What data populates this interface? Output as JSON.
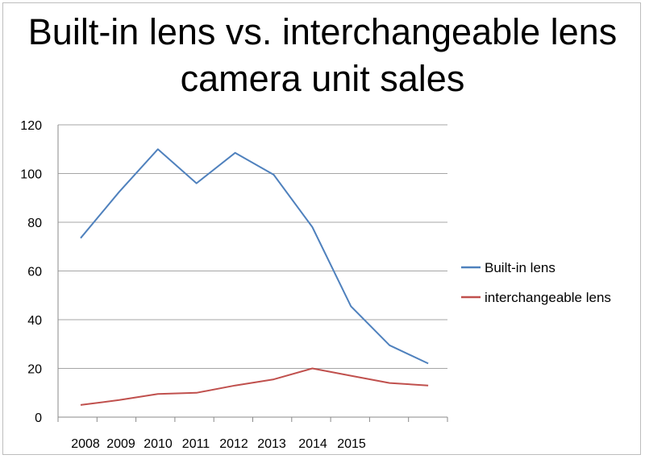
{
  "chart_data": {
    "type": "line",
    "title_lines": [
      "Built-in lens vs. interchangeable lens",
      "camera unit sales"
    ],
    "xlabel": "",
    "ylabel": "",
    "x": [
      "2008",
      "2009",
      "2010",
      "2011",
      "2012",
      "2013",
      "2014",
      "2015",
      "",
      ""
    ],
    "ylim": [
      0,
      120
    ],
    "yticks": [
      0,
      20,
      40,
      60,
      80,
      100,
      120
    ],
    "grid": true,
    "legend_position": "right",
    "series": [
      {
        "name": "Built-in lens",
        "color": "#4f81bd",
        "values": [
          73.5,
          92.5,
          110,
          96,
          108.5,
          99.5,
          78,
          45.5,
          29.5,
          22
        ]
      },
      {
        "name": "interchangeable lens",
        "color": "#c0504d",
        "values": [
          5,
          7,
          9.5,
          10,
          13,
          15.5,
          20,
          17,
          14,
          13
        ]
      }
    ]
  }
}
